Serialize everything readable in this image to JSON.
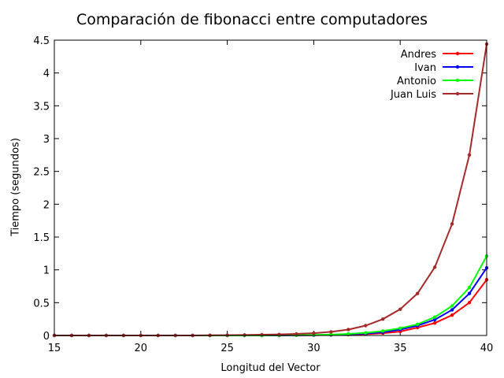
{
  "chart_data": {
    "type": "line",
    "title": "Comparación de fibonacci entre computadores",
    "xlabel": "Longitud del Vector",
    "ylabel": "Tiempo (segundos)",
    "xlim": [
      15,
      40
    ],
    "ylim": [
      0,
      4.5
    ],
    "xticks": [
      15,
      20,
      25,
      30,
      35,
      40
    ],
    "yticks": [
      0,
      0.5,
      1,
      1.5,
      2,
      2.5,
      3,
      3.5,
      4,
      4.5
    ],
    "grid": false,
    "legend_position": "top-right",
    "x": [
      15,
      16,
      17,
      18,
      19,
      20,
      21,
      22,
      23,
      24,
      25,
      26,
      27,
      28,
      29,
      30,
      31,
      32,
      33,
      34,
      35,
      36,
      37,
      38,
      39,
      40
    ],
    "series": [
      {
        "name": "Andres",
        "color": "#ff0000",
        "values": [
          0,
          0,
          0,
          0,
          0,
          0,
          0,
          0,
          0,
          0,
          0,
          0,
          0,
          0,
          0.003,
          0.005,
          0.008,
          0.013,
          0.02,
          0.035,
          0.06,
          0.12,
          0.19,
          0.31,
          0.5,
          0.85
        ]
      },
      {
        "name": "Ivan",
        "color": "#0000ff",
        "values": [
          0,
          0,
          0,
          0,
          0,
          0,
          0,
          0,
          0,
          0,
          0,
          0,
          0,
          0,
          0.003,
          0.005,
          0.01,
          0.018,
          0.03,
          0.05,
          0.09,
          0.15,
          0.24,
          0.39,
          0.64,
          1.03
        ]
      },
      {
        "name": "Antonio",
        "color": "#00ff00",
        "values": [
          0,
          0,
          0,
          0,
          0,
          0,
          0,
          0,
          0,
          0,
          0,
          0,
          0,
          0.003,
          0.005,
          0.008,
          0.014,
          0.024,
          0.04,
          0.068,
          0.11,
          0.17,
          0.28,
          0.45,
          0.73,
          1.21
        ]
      },
      {
        "name": "Juan Luis",
        "color": "#a52a2a",
        "values": [
          0,
          0,
          0,
          0,
          0,
          0,
          0,
          0,
          0,
          0.003,
          0.005,
          0.008,
          0.012,
          0.016,
          0.024,
          0.035,
          0.055,
          0.09,
          0.15,
          0.25,
          0.4,
          0.64,
          1.04,
          1.7,
          2.75,
          4.44
        ]
      }
    ]
  }
}
